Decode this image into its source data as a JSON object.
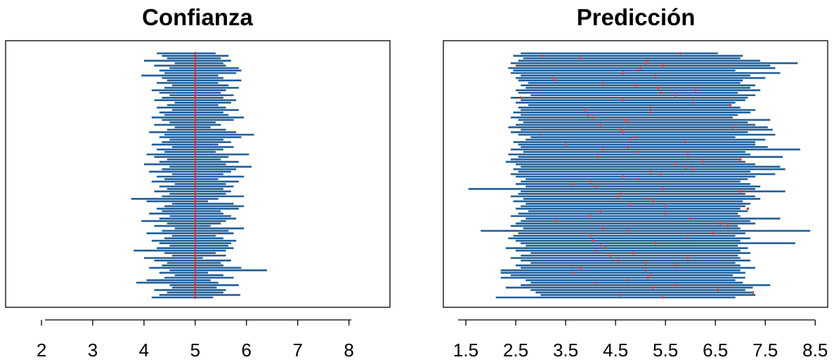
{
  "colors": {
    "interval": "#1f5f9a",
    "point": "#e0312f",
    "reference": "#e0312f",
    "frame": "#000000",
    "background": "#ffffff"
  },
  "chart_data": [
    {
      "type": "interval",
      "title": "Confianza",
      "xlabel": "",
      "ylabel": "",
      "xlim": [
        1.3,
        8.8
      ],
      "x_ticks": [
        "2",
        "3",
        "4",
        "5",
        "6",
        "7",
        "8"
      ],
      "reference_line": 5,
      "count": 100,
      "intervals": [
        [
          4.15,
          5.35
        ],
        [
          4.3,
          5.88
        ],
        [
          4.45,
          5.55
        ],
        [
          4.2,
          5.6
        ],
        [
          4.55,
          5.42
        ],
        [
          4.5,
          5.85
        ],
        [
          3.85,
          5.45
        ],
        [
          4.05,
          5.3
        ],
        [
          4.4,
          5.75
        ],
        [
          4.6,
          5.55
        ],
        [
          4.3,
          5.25
        ],
        [
          4.5,
          6.4
        ],
        [
          4.1,
          5.9
        ],
        [
          4.35,
          5.55
        ],
        [
          4.45,
          5.5
        ],
        [
          4.2,
          5.7
        ],
        [
          4.0,
          5.15
        ],
        [
          4.55,
          5.6
        ],
        [
          4.4,
          5.4
        ],
        [
          3.8,
          5.6
        ],
        [
          4.25,
          5.75
        ],
        [
          4.5,
          5.65
        ],
        [
          4.3,
          5.7
        ],
        [
          4.15,
          5.8
        ],
        [
          4.4,
          5.55
        ],
        [
          4.55,
          5.4
        ],
        [
          4.05,
          5.75
        ],
        [
          4.35,
          5.65
        ],
        [
          4.6,
          5.95
        ],
        [
          4.2,
          5.3
        ],
        [
          4.45,
          5.5
        ],
        [
          3.95,
          5.6
        ],
        [
          4.3,
          5.8
        ],
        [
          4.5,
          5.7
        ],
        [
          4.1,
          5.55
        ],
        [
          4.35,
          5.5
        ],
        [
          4.25,
          5.85
        ],
        [
          4.4,
          5.95
        ],
        [
          4.55,
          5.75
        ],
        [
          4.05,
          5.25
        ],
        [
          3.75,
          5.45
        ],
        [
          4.35,
          5.95
        ],
        [
          4.5,
          5.6
        ],
        [
          4.2,
          5.7
        ],
        [
          4.45,
          5.55
        ],
        [
          4.3,
          5.75
        ],
        [
          4.6,
          5.6
        ],
        [
          4.15,
          5.85
        ],
        [
          4.4,
          5.45
        ],
        [
          4.25,
          5.95
        ],
        [
          4.55,
          5.55
        ],
        [
          4.1,
          5.7
        ],
        [
          4.35,
          5.8
        ],
        [
          4.5,
          6.1
        ],
        [
          4.0,
          5.6
        ],
        [
          4.3,
          5.85
        ],
        [
          4.45,
          5.5
        ],
        [
          4.2,
          5.65
        ],
        [
          4.05,
          6.05
        ],
        [
          4.4,
          5.4
        ],
        [
          4.25,
          5.55
        ],
        [
          4.55,
          5.75
        ],
        [
          4.15,
          5.45
        ],
        [
          4.35,
          5.7
        ],
        [
          4.5,
          5.55
        ],
        [
          4.3,
          5.9
        ],
        [
          4.4,
          6.15
        ],
        [
          4.1,
          5.8
        ],
        [
          4.45,
          5.6
        ],
        [
          4.6,
          5.3
        ],
        [
          4.2,
          5.5
        ],
        [
          4.5,
          5.4
        ],
        [
          4.35,
          5.75
        ],
        [
          4.15,
          5.95
        ],
        [
          4.4,
          5.65
        ],
        [
          4.3,
          5.55
        ],
        [
          4.55,
          5.85
        ],
        [
          4.25,
          5.6
        ],
        [
          4.45,
          5.45
        ],
        [
          4.6,
          5.7
        ],
        [
          4.2,
          5.8
        ],
        [
          4.35,
          5.55
        ],
        [
          4.5,
          5.75
        ],
        [
          4.3,
          5.5
        ],
        [
          4.15,
          5.6
        ],
        [
          4.4,
          5.85
        ],
        [
          4.55,
          5.65
        ],
        [
          4.25,
          5.45
        ],
        [
          4.45,
          5.9
        ],
        [
          4.35,
          5.55
        ],
        [
          3.95,
          5.45
        ],
        [
          4.4,
          5.8
        ],
        [
          4.3,
          5.9
        ],
        [
          4.5,
          5.85
        ],
        [
          4.2,
          5.6
        ],
        [
          4.6,
          5.55
        ],
        [
          4.0,
          5.7
        ],
        [
          4.45,
          5.5
        ],
        [
          4.35,
          5.65
        ],
        [
          4.25,
          5.4
        ]
      ]
    },
    {
      "type": "interval",
      "title": "Predicción",
      "xlabel": "",
      "ylabel": "",
      "xlim": [
        1.05,
        8.75
      ],
      "x_ticks": [
        "1.5",
        "2.5",
        "3.5",
        "4.5",
        "5.5",
        "6.5",
        "7.5",
        "8.5"
      ],
      "count": 100,
      "intervals": [
        [
          2.1,
          6.9,
          5.45
        ],
        [
          3.0,
          7.3,
          4.6
        ],
        [
          2.9,
          7.25,
          7.25
        ],
        [
          2.8,
          7.1,
          6.55
        ],
        [
          2.3,
          7.25,
          5.25
        ],
        [
          2.6,
          7.6,
          5.7
        ],
        [
          2.8,
          7.05,
          4.1
        ],
        [
          2.7,
          6.9,
          4.75
        ],
        [
          2.2,
          7.1,
          5.15
        ],
        [
          2.4,
          6.85,
          5.2
        ],
        [
          2.2,
          7.1,
          3.65
        ],
        [
          2.2,
          7.0,
          5.1
        ],
        [
          2.6,
          7.3,
          3.8
        ],
        [
          2.5,
          7.0,
          5.7
        ],
        [
          2.8,
          6.9,
          5.1
        ],
        [
          2.6,
          7.2,
          4.55
        ],
        [
          2.4,
          7.0,
          5.95
        ],
        [
          2.6,
          6.95,
          4.4
        ],
        [
          2.8,
          7.2,
          4.85
        ],
        [
          2.5,
          7.0,
          4.1
        ],
        [
          2.3,
          7.15,
          4.3
        ],
        [
          2.7,
          6.95,
          4.2
        ],
        [
          2.6,
          8.1,
          5.3
        ],
        [
          2.5,
          7.0,
          4.05
        ],
        [
          2.35,
          7.2,
          5.95
        ],
        [
          2.45,
          6.9,
          4.0
        ],
        [
          2.55,
          7.1,
          6.45
        ],
        [
          1.8,
          8.4,
          4.75
        ],
        [
          2.65,
          7.0,
          4.25
        ],
        [
          2.4,
          6.95,
          6.75
        ],
        [
          2.5,
          7.3,
          6.6
        ],
        [
          2.6,
          7.2,
          3.3
        ],
        [
          2.7,
          7.8,
          6.0
        ],
        [
          2.4,
          7.0,
          4.0
        ],
        [
          2.55,
          6.95,
          5.5
        ],
        [
          2.75,
          7.15,
          4.2
        ],
        [
          2.5,
          7.0,
          7.15
        ],
        [
          2.6,
          7.1,
          5.5
        ],
        [
          2.7,
          7.2,
          4.8
        ],
        [
          2.45,
          7.05,
          5.25
        ],
        [
          2.65,
          7.4,
          5.15
        ],
        [
          2.4,
          7.3,
          4.55
        ],
        [
          2.55,
          7.1,
          4.6
        ],
        [
          2.6,
          7.9,
          7.0
        ],
        [
          1.55,
          7.3,
          5.45
        ],
        [
          2.7,
          7.4,
          4.1
        ],
        [
          2.5,
          7.2,
          3.65
        ],
        [
          2.6,
          7.0,
          4.0
        ],
        [
          2.7,
          7.15,
          4.95
        ],
        [
          2.5,
          7.3,
          4.65
        ],
        [
          2.4,
          7.7,
          5.4
        ],
        [
          2.55,
          7.2,
          5.2
        ],
        [
          2.45,
          7.9,
          6.05
        ],
        [
          2.6,
          7.8,
          5.9
        ],
        [
          2.5,
          7.3,
          5.7
        ],
        [
          2.3,
          7.1,
          6.25
        ],
        [
          2.4,
          7.0,
          7.0
        ],
        [
          2.55,
          7.85,
          4.15
        ],
        [
          2.35,
          7.2,
          5.95
        ],
        [
          2.65,
          7.1,
          4.95
        ],
        [
          2.4,
          8.2,
          4.25
        ],
        [
          2.6,
          7.55,
          4.75
        ],
        [
          2.55,
          7.3,
          3.5
        ],
        [
          2.45,
          7.3,
          5.9
        ],
        [
          2.7,
          7.5,
          4.8
        ],
        [
          2.8,
          6.9,
          4.9
        ],
        [
          2.55,
          7.7,
          3.0
        ],
        [
          2.4,
          7.15,
          4.65
        ],
        [
          2.6,
          7.65,
          4.6
        ],
        [
          2.35,
          7.55,
          6.85
        ],
        [
          2.5,
          7.3,
          4.2
        ],
        [
          2.65,
          7.15,
          4.75
        ],
        [
          2.55,
          7.6,
          4.7
        ],
        [
          2.4,
          6.85,
          4.05
        ],
        [
          2.6,
          6.95,
          3.95
        ],
        [
          2.45,
          7.2,
          5.2
        ],
        [
          2.6,
          7.3,
          3.9
        ],
        [
          2.55,
          7.0,
          5.2
        ],
        [
          2.75,
          6.8,
          6.8
        ],
        [
          2.5,
          6.9,
          6.05
        ],
        [
          2.6,
          7.1,
          4.65
        ],
        [
          2.4,
          7.15,
          2.6
        ],
        [
          2.8,
          7.3,
          5.7
        ],
        [
          2.55,
          6.95,
          5.4
        ],
        [
          2.5,
          7.4,
          6.1
        ],
        [
          2.7,
          7.2,
          5.35
        ],
        [
          2.6,
          7.3,
          4.9
        ],
        [
          2.75,
          7.0,
          4.25
        ],
        [
          2.55,
          7.05,
          3.3
        ],
        [
          2.5,
          7.5,
          3.25
        ],
        [
          2.6,
          7.2,
          5.3
        ],
        [
          2.4,
          7.8,
          4.65
        ],
        [
          2.45,
          6.9,
          4.95
        ],
        [
          2.35,
          7.7,
          5.0
        ],
        [
          2.5,
          7.6,
          5.45
        ],
        [
          2.4,
          8.15,
          5.1
        ],
        [
          2.55,
          7.4,
          5.15
        ],
        [
          2.65,
          7.0,
          3.8
        ],
        [
          2.45,
          7.05,
          3.05
        ],
        [
          2.6,
          6.55,
          5.8
        ]
      ]
    }
  ]
}
